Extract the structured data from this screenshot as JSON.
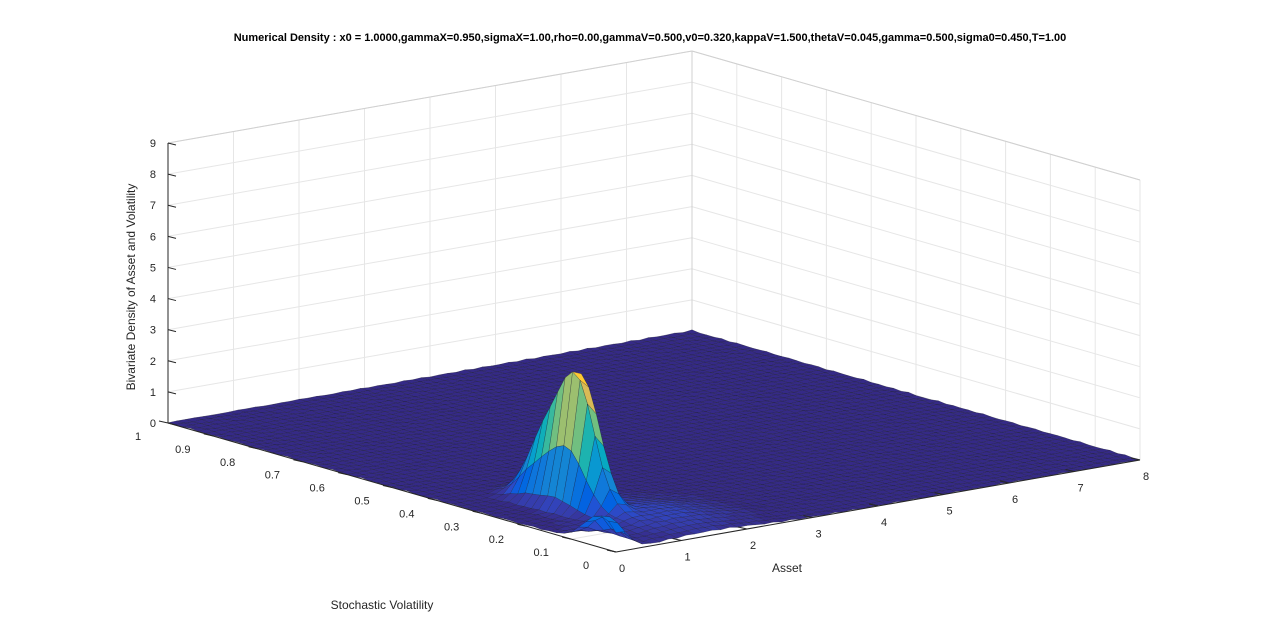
{
  "chart_data": {
    "type": "surface",
    "title": "Numerical Density : x0 = 1.0000,gammaX=0.950,sigmaX=1.00,rho=0.00,gammaV=0.500,v0=0.320,kappaV=1.500,thetaV=0.045,gamma=0.500,sigma0=0.450,T=1.00",
    "xlabel": "Asset",
    "ylabel": "Stochastic Volatility",
    "zlabel": "Bivariate Density of Asset and Volatility",
    "xlim": [
      0,
      8
    ],
    "ylim": [
      0,
      1
    ],
    "zlim": [
      0,
      9
    ],
    "x_ticks": [
      "0",
      "1",
      "2",
      "3",
      "4",
      "5",
      "6",
      "7",
      "8"
    ],
    "y_ticks": [
      "0",
      "0.1",
      "0.2",
      "0.3",
      "0.4",
      "0.5",
      "0.6",
      "0.7",
      "0.8",
      "0.9",
      "1"
    ],
    "z_ticks": [
      "0",
      "1",
      "2",
      "3",
      "4",
      "5",
      "6",
      "7",
      "8",
      "9"
    ],
    "grid": true,
    "colormap": "parula",
    "peak": {
      "asset": 1.0,
      "volatility": 0.25,
      "density": 4.9
    }
  }
}
